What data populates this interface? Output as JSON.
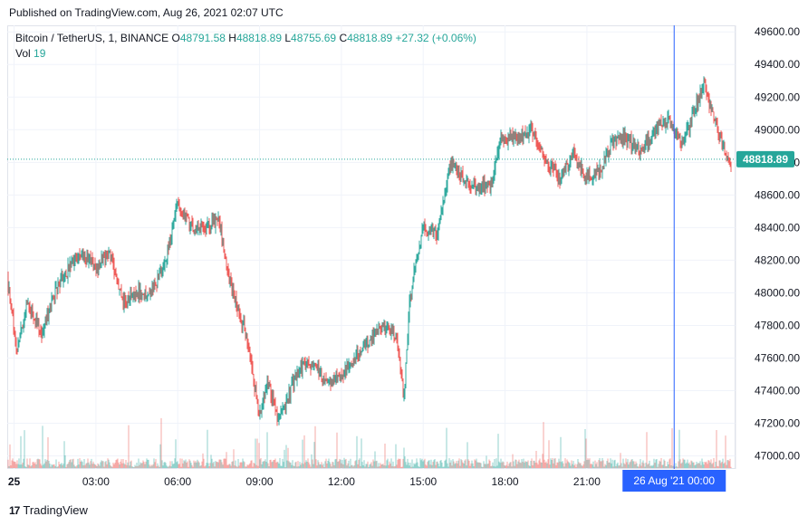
{
  "header": {
    "published": "Published on TradingView.com, Aug 26, 2021 02:07 UTC"
  },
  "legend": {
    "symbol": "Bitcoin / TetherUS, 1, BINANCE",
    "open_label": "O",
    "open": "48791.58",
    "high_label": "H",
    "high": "48818.89",
    "low_label": "L",
    "low": "48755.69",
    "close_label": "C",
    "close": "48818.89",
    "change": "+27.32 (+0.06%)",
    "vol_label": "Vol",
    "vol": "19"
  },
  "footer": {
    "logo_text": "17",
    "brand": "TradingView"
  },
  "colors": {
    "up": "#26a69a",
    "down": "#ef5350",
    "crosshair": "#2962ff",
    "price_tag": "#26a69a",
    "grid": "#f0f3fa"
  },
  "chart_data": {
    "type": "candlestick",
    "symbol": "BTCUSDT",
    "interval": "1",
    "ylim": [
      46920,
      49640
    ],
    "y_ticks": [
      "49600.00",
      "49400.00",
      "49200.00",
      "49000.00",
      "48800.00",
      "48600.00",
      "48400.00",
      "48200.00",
      "48000.00",
      "47800.00",
      "47600.00",
      "47400.00",
      "47200.00",
      "47000.00"
    ],
    "x_ticks": [
      "25",
      "03:00",
      "06:00",
      "09:00",
      "12:00",
      "15:00",
      "18:00",
      "21:00"
    ],
    "x_tick_hours": [
      0,
      3,
      6,
      9,
      12,
      15,
      18,
      21
    ],
    "x_range_hours": [
      -0.25,
      26.45
    ],
    "crosshair_hour": 24.2,
    "crosshair_label": "26 Aug '21   00:00",
    "last_price": 48818.89,
    "last_price_label": "48818.89",
    "price_path": [
      {
        "h": -0.25,
        "p": 48100
      },
      {
        "h": 0.1,
        "p": 47650
      },
      {
        "h": 0.5,
        "p": 47950
      },
      {
        "h": 1.0,
        "p": 47750
      },
      {
        "h": 1.5,
        "p": 48000
      },
      {
        "h": 2.0,
        "p": 48150
      },
      {
        "h": 2.5,
        "p": 48250
      },
      {
        "h": 3.0,
        "p": 48150
      },
      {
        "h": 3.5,
        "p": 48250
      },
      {
        "h": 4.0,
        "p": 47950
      },
      {
        "h": 4.5,
        "p": 48000
      },
      {
        "h": 5.0,
        "p": 48000
      },
      {
        "h": 5.5,
        "p": 48150
      },
      {
        "h": 6.0,
        "p": 48550
      },
      {
        "h": 6.5,
        "p": 48400
      },
      {
        "h": 7.0,
        "p": 48400
      },
      {
        "h": 7.5,
        "p": 48450
      },
      {
        "h": 8.0,
        "p": 48000
      },
      {
        "h": 8.5,
        "p": 47750
      },
      {
        "h": 9.0,
        "p": 47250
      },
      {
        "h": 9.3,
        "p": 47450
      },
      {
        "h": 9.7,
        "p": 47200
      },
      {
        "h": 10.0,
        "p": 47350
      },
      {
        "h": 10.5,
        "p": 47550
      },
      {
        "h": 11.0,
        "p": 47550
      },
      {
        "h": 11.5,
        "p": 47450
      },
      {
        "h": 12.0,
        "p": 47500
      },
      {
        "h": 12.5,
        "p": 47600
      },
      {
        "h": 13.0,
        "p": 47700
      },
      {
        "h": 13.5,
        "p": 47800
      },
      {
        "h": 14.0,
        "p": 47750
      },
      {
        "h": 14.3,
        "p": 47350
      },
      {
        "h": 14.5,
        "p": 47950
      },
      {
        "h": 14.8,
        "p": 48250
      },
      {
        "h": 15.0,
        "p": 48400
      },
      {
        "h": 15.5,
        "p": 48350
      },
      {
        "h": 16.0,
        "p": 48800
      },
      {
        "h": 16.5,
        "p": 48700
      },
      {
        "h": 17.0,
        "p": 48650
      },
      {
        "h": 17.5,
        "p": 48650
      },
      {
        "h": 17.8,
        "p": 48950
      },
      {
        "h": 18.0,
        "p": 48950
      },
      {
        "h": 18.5,
        "p": 48950
      },
      {
        "h": 19.0,
        "p": 49000
      },
      {
        "h": 19.5,
        "p": 48800
      },
      {
        "h": 20.0,
        "p": 48700
      },
      {
        "h": 20.5,
        "p": 48850
      },
      {
        "h": 21.0,
        "p": 48700
      },
      {
        "h": 21.5,
        "p": 48750
      },
      {
        "h": 22.0,
        "p": 48950
      },
      {
        "h": 22.5,
        "p": 48950
      },
      {
        "h": 23.0,
        "p": 48850
      },
      {
        "h": 23.5,
        "p": 49000
      },
      {
        "h": 24.0,
        "p": 49050
      },
      {
        "h": 24.5,
        "p": 48900
      },
      {
        "h": 25.0,
        "p": 49150
      },
      {
        "h": 25.3,
        "p": 49300
      },
      {
        "h": 25.6,
        "p": 49100
      },
      {
        "h": 26.0,
        "p": 48900
      },
      {
        "h": 26.3,
        "p": 48750
      },
      {
        "h": 26.45,
        "p": 48818.89
      }
    ],
    "volume_scale_max": 60
  }
}
